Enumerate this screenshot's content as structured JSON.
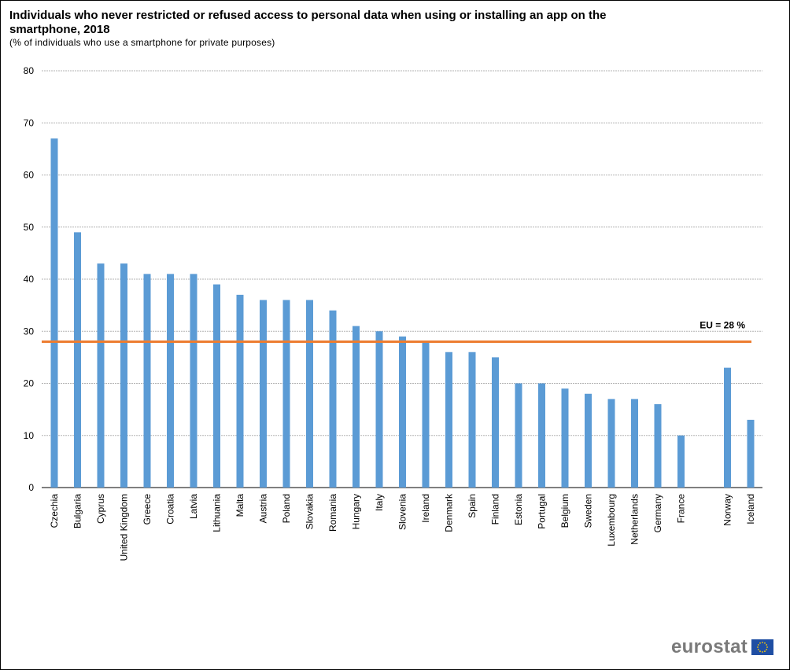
{
  "chart_data": {
    "type": "bar",
    "title": "Individuals who never restricted or refused access to personal data when using or installing an app on the smartphone, 2018",
    "subtitle": "(% of individuals  who use a smartphone  for  private  purposes)",
    "categories": [
      "Czechia",
      "Bulgaria",
      "Cyprus",
      "United Kingdom",
      "Greece",
      "Croatia",
      "Latvia",
      "Lithuania",
      "Malta",
      "Austria",
      "Poland",
      "Slovakia",
      "Romania",
      "Hungary",
      "Italy",
      "Slovenia",
      "Ireland",
      "Denmark",
      "Spain",
      "Finland",
      "Estonia",
      "Portugal",
      "Belgium",
      "Sweden",
      "Luxembourg",
      "Netherlands",
      "Germany",
      "France",
      "Norway",
      "Iceland"
    ],
    "values": [
      67,
      49,
      43,
      43,
      41,
      41,
      41,
      39,
      37,
      36,
      36,
      36,
      34,
      31,
      30,
      29,
      28,
      26,
      26,
      25,
      20,
      20,
      19,
      18,
      17,
      17,
      16,
      10,
      23,
      13
    ],
    "gap_before_index": 28,
    "ylim": [
      0,
      80
    ],
    "yticks": [
      0,
      10,
      20,
      30,
      40,
      50,
      60,
      70,
      80
    ],
    "grid": true,
    "bar_color": "#5b9bd5",
    "reference_line": {
      "value": 28,
      "label": "EU = 28 %",
      "color": "#ed7d31"
    }
  },
  "branding": {
    "logo_text": "eurostat"
  }
}
